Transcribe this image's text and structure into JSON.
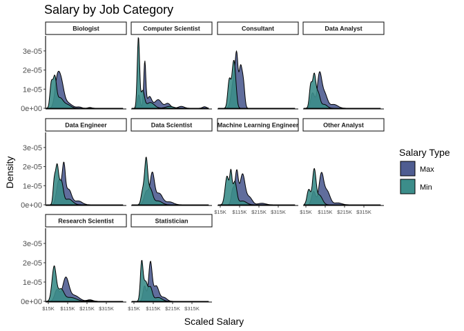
{
  "chart_data": {
    "type": "area",
    "title": "Salary by Job Category",
    "xlabel": "Scaled Salary",
    "ylabel": "Density",
    "xlim": [
      0,
      400000
    ],
    "ylim": [
      0,
      4e-05
    ],
    "x_ticks": [
      15000,
      115000,
      215000,
      315000
    ],
    "x_tick_labels": [
      "$15K",
      "$115K",
      "$215K",
      "$315K"
    ],
    "y_ticks": [
      0,
      1e-05,
      2e-05,
      3e-05
    ],
    "y_tick_labels": [
      "0e+00",
      "1e-05",
      "2e-05",
      "3e-05"
    ],
    "legend": {
      "title": "Salary Type",
      "position": "right",
      "entries": [
        {
          "name": "Max",
          "color": "#4f5d91"
        },
        {
          "name": "Min",
          "color": "#3c8d8a"
        }
      ]
    },
    "grid": false,
    "facets": [
      {
        "label": "Biologist",
        "series": [
          {
            "name": "Max",
            "peaks": [
              [
                60000,
                1.25e-05,
                12000
              ],
              [
                80000,
                1.25e-05,
                14000
              ],
              [
                110000,
                3e-06,
                25000
              ],
              [
                175000,
                6e-07,
                12000
              ],
              [
                230000,
                4e-07,
                10000
              ]
            ]
          },
          {
            "name": "Min",
            "peaks": [
              [
                30000,
                1.2e-05,
                7000
              ],
              [
                48000,
                1.6e-05,
                9000
              ],
              [
                75000,
                5e-06,
                15000
              ],
              [
                110000,
                2e-06,
                20000
              ]
            ]
          }
        ]
      },
      {
        "label": "Computer Scientist",
        "series": [
          {
            "name": "Max",
            "peaks": [
              [
                40000,
                7e-06,
                7000
              ],
              [
                71000,
                2.4e-05,
                5500
              ],
              [
                95000,
                6e-06,
                12000
              ],
              [
                140000,
                4.5e-06,
                18000
              ],
              [
                190000,
                2.5e-06,
                14000
              ],
              [
                260000,
                1e-06,
                15000
              ],
              [
                380000,
                8e-07,
                10000
              ]
            ]
          },
          {
            "name": "Min",
            "peaks": [
              [
                38000,
                3.7e-05,
                6000
              ],
              [
                60000,
                9e-06,
                9000
              ],
              [
                100000,
                3e-06,
                20000
              ],
              [
                200000,
                1e-06,
                20000
              ]
            ]
          }
        ]
      },
      {
        "label": "Consultant",
        "series": [
          {
            "name": "Max",
            "peaks": [
              [
                85000,
                1.5e-05,
                12000
              ],
              [
                100000,
                2.2e-05,
                7000
              ],
              [
                120000,
                2.1e-05,
                8000
              ],
              [
                135000,
                1.2e-05,
                7000
              ]
            ]
          },
          {
            "name": "Min",
            "peaks": [
              [
                62000,
                1.5e-05,
                8000
              ],
              [
                82000,
                1.8e-05,
                8000
              ],
              [
                92000,
                1.2e-05,
                8000
              ]
            ]
          }
        ]
      },
      {
        "label": "Data Analyst",
        "series": [
          {
            "name": "Max",
            "peaks": [
              [
                50000,
                8e-06,
                10000
              ],
              [
                85000,
                1.7e-05,
                11000
              ],
              [
                110000,
                8e-06,
                15000
              ],
              [
                160000,
                2e-06,
                20000
              ]
            ]
          },
          {
            "name": "Min",
            "peaks": [
              [
                40000,
                1.2e-05,
                7000
              ],
              [
                58000,
                1.7e-05,
                8000
              ],
              [
                78000,
                8e-06,
                10000
              ],
              [
                110000,
                2e-06,
                15000
              ]
            ]
          }
        ]
      },
      {
        "label": "Data Engineer",
        "series": [
          {
            "name": "Max",
            "peaks": [
              [
                70000,
                1.3e-05,
                12000
              ],
              [
                95000,
                1.9e-05,
                8000
              ],
              [
                120000,
                8e-06,
                15000
              ],
              [
                170000,
                2e-06,
                20000
              ]
            ]
          },
          {
            "name": "Min",
            "peaks": [
              [
                45000,
                1.1e-05,
                6000
              ],
              [
                60000,
                2e-05,
                8000
              ],
              [
                82000,
                1.2e-05,
                10000
              ],
              [
                120000,
                3e-06,
                20000
              ]
            ]
          }
        ]
      },
      {
        "label": "Data Scientist",
        "series": [
          {
            "name": "Max",
            "peaks": [
              [
                80000,
                7e-06,
                12000
              ],
              [
                110000,
                1.6e-05,
                11000
              ],
              [
                145000,
                6e-06,
                18000
              ],
              [
                200000,
                1.5e-06,
                20000
              ]
            ]
          },
          {
            "name": "Min",
            "peaks": [
              [
                60000,
                7e-06,
                8000
              ],
              [
                78000,
                2.3e-05,
                8000
              ],
              [
                100000,
                8e-06,
                12000
              ],
              [
                140000,
                2e-06,
                20000
              ]
            ]
          }
        ]
      },
      {
        "label": "Machine Learning Engineer",
        "series": [
          {
            "name": "Max",
            "peaks": [
              [
                80000,
                8e-06,
                8000
              ],
              [
                100000,
                1.7e-05,
                8000
              ],
              [
                130000,
                1.6e-05,
                13000
              ],
              [
                165000,
                4e-06,
                15000
              ],
              [
                230000,
                8e-07,
                20000
              ]
            ]
          },
          {
            "name": "Min",
            "peaks": [
              [
                50000,
                1.5e-05,
                10000
              ],
              [
                70000,
                1.5e-05,
                6000
              ],
              [
                90000,
                1.2e-05,
                10000
              ],
              [
                130000,
                2e-06,
                20000
              ]
            ]
          }
        ]
      },
      {
        "label": "Other Analyst",
        "series": [
          {
            "name": "Max",
            "peaks": [
              [
                55000,
                7e-06,
                10000
              ],
              [
                95000,
                1.6e-05,
                12000
              ],
              [
                125000,
                7e-06,
                15000
              ],
              [
                180000,
                1e-06,
                20000
              ]
            ]
          },
          {
            "name": "Min",
            "peaks": [
              [
                30000,
                8e-06,
                9000
              ],
              [
                58000,
                1.8e-05,
                9000
              ],
              [
                85000,
                5e-06,
                15000
              ]
            ]
          }
        ]
      },
      {
        "label": "Research Scientist",
        "series": [
          {
            "name": "Max",
            "peaks": [
              [
                60000,
                6e-06,
                12000
              ],
              [
                105000,
                1.2e-05,
                16000
              ],
              [
                150000,
                3e-06,
                25000
              ],
              [
                230000,
                8e-07,
                15000
              ]
            ]
          },
          {
            "name": "Min",
            "peaks": [
              [
                45000,
                1.8e-05,
                11000
              ],
              [
                80000,
                6e-06,
                15000
              ],
              [
                130000,
                2e-06,
                30000
              ],
              [
                230000,
                4e-07,
                15000
              ]
            ]
          }
        ]
      },
      {
        "label": "Statistician",
        "series": [
          {
            "name": "Max",
            "peaks": [
              [
                70000,
                8e-06,
                8000
              ],
              [
                100000,
                2e-05,
                9000
              ],
              [
                130000,
                8e-06,
                14000
              ],
              [
                170000,
                2e-06,
                15000
              ]
            ]
          },
          {
            "name": "Min",
            "peaks": [
              [
                55000,
                2e-05,
                7000
              ],
              [
                75000,
                1e-05,
                10000
              ],
              [
                100000,
                7e-06,
                10000
              ],
              [
                140000,
                2e-06,
                20000
              ]
            ]
          }
        ]
      }
    ]
  }
}
